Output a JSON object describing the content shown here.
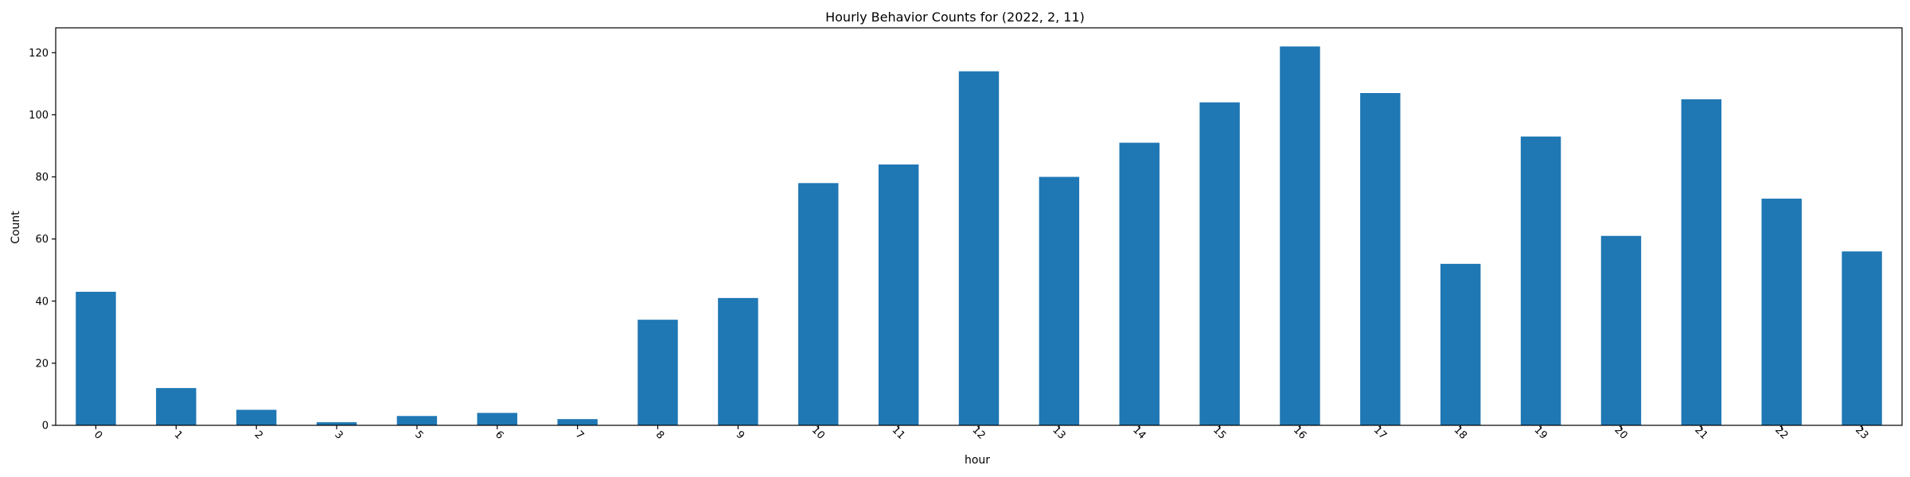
{
  "chart_data": {
    "type": "bar",
    "title": "Hourly Behavior Counts for (2022, 2, 11)",
    "xlabel": "hour",
    "ylabel": "Count",
    "categories": [
      "0",
      "1",
      "2",
      "3",
      "5",
      "6",
      "7",
      "8",
      "9",
      "10",
      "11",
      "12",
      "13",
      "14",
      "15",
      "16",
      "17",
      "18",
      "19",
      "20",
      "21",
      "22",
      "23"
    ],
    "values": [
      43,
      12,
      5,
      1,
      3,
      4,
      2,
      34,
      41,
      78,
      84,
      114,
      80,
      91,
      104,
      122,
      107,
      52,
      93,
      61,
      105,
      73,
      56
    ],
    "ylim": [
      0,
      128
    ],
    "yticks": [
      0,
      20,
      40,
      60,
      80,
      100,
      120
    ],
    "bar_color": "#1f77b4",
    "grid": false,
    "legend": "none",
    "xtick_rotation": 45
  }
}
